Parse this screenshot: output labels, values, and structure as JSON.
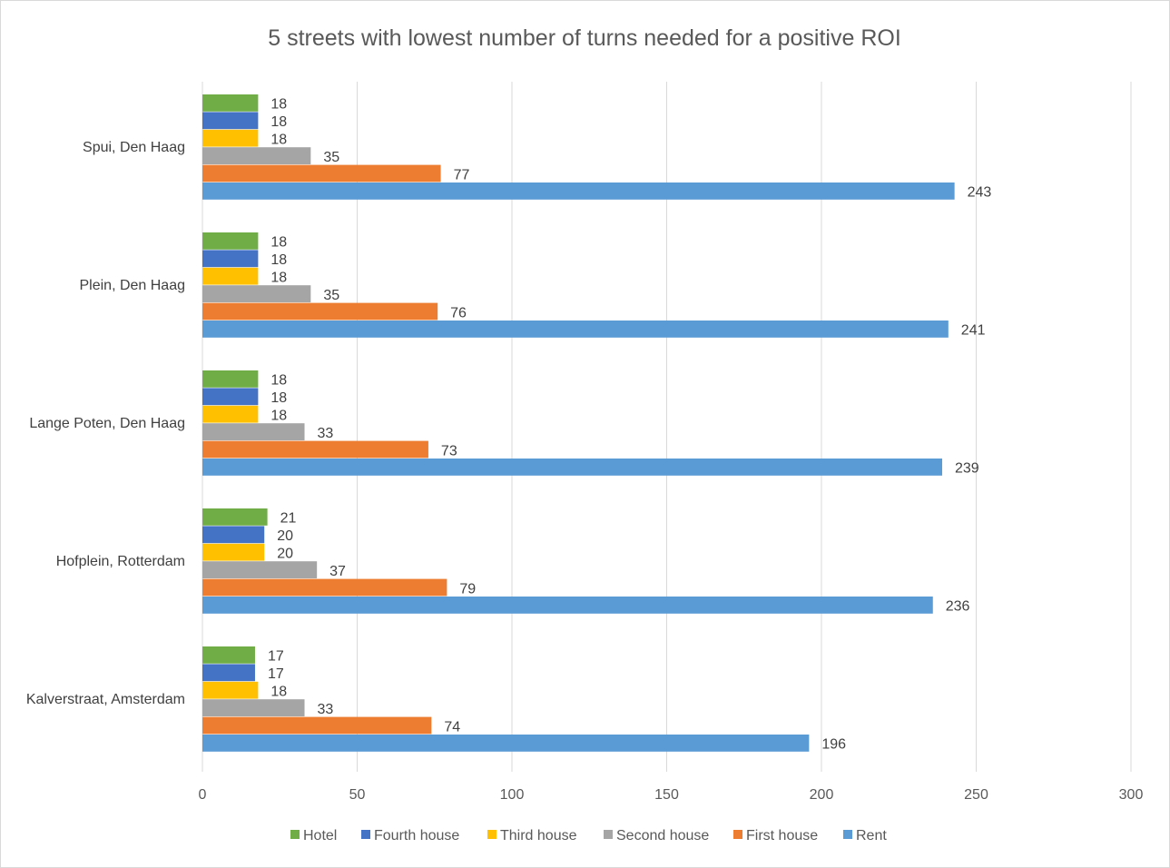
{
  "chart_data": {
    "type": "bar",
    "orientation": "horizontal",
    "title": "5 streets with lowest number of turns needed for a positive ROI",
    "categories": [
      "Spui, Den Haag",
      "Plein, Den Haag",
      "Lange Poten, Den Haag",
      "Hofplein, Rotterdam",
      "Kalverstraat, Amsterdam"
    ],
    "series": [
      {
        "name": "Hotel",
        "color": "#70ad47",
        "values": [
          18,
          18,
          18,
          21,
          17
        ]
      },
      {
        "name": "Fourth house",
        "color": "#4472c4",
        "values": [
          18,
          18,
          18,
          20,
          17
        ]
      },
      {
        "name": "Third house",
        "color": "#ffc000",
        "values": [
          18,
          18,
          18,
          20,
          18
        ]
      },
      {
        "name": "Second house",
        "color": "#a5a5a5",
        "values": [
          35,
          35,
          33,
          37,
          33
        ]
      },
      {
        "name": "First house",
        "color": "#ed7d31",
        "values": [
          77,
          76,
          73,
          79,
          74
        ]
      },
      {
        "name": "Rent",
        "color": "#5b9bd5",
        "values": [
          243,
          241,
          239,
          236,
          196
        ]
      }
    ],
    "xlim": [
      0,
      300
    ],
    "x_ticks": [
      "0",
      "50",
      "100",
      "150",
      "200",
      "250",
      "300"
    ],
    "grid": true,
    "legend_position": "bottom"
  }
}
